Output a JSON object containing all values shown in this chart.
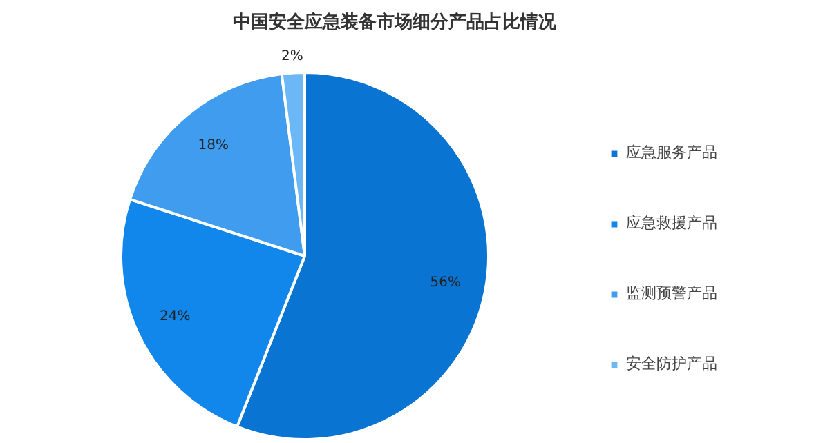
{
  "chart_data": {
    "type": "pie",
    "title": "中国安全应急装备市场细分产品占比情况",
    "categories": [
      "应急服务产品",
      "应急救援产品",
      "监测预警产品",
      "安全防护产品"
    ],
    "values": [
      56,
      24,
      18,
      2
    ],
    "value_labels": [
      "56%",
      "24%",
      "18%",
      "2%"
    ],
    "colors": [
      "#0a74d2",
      "#1187ec",
      "#3f9cee",
      "#6cb8f7"
    ],
    "legend": "right"
  }
}
